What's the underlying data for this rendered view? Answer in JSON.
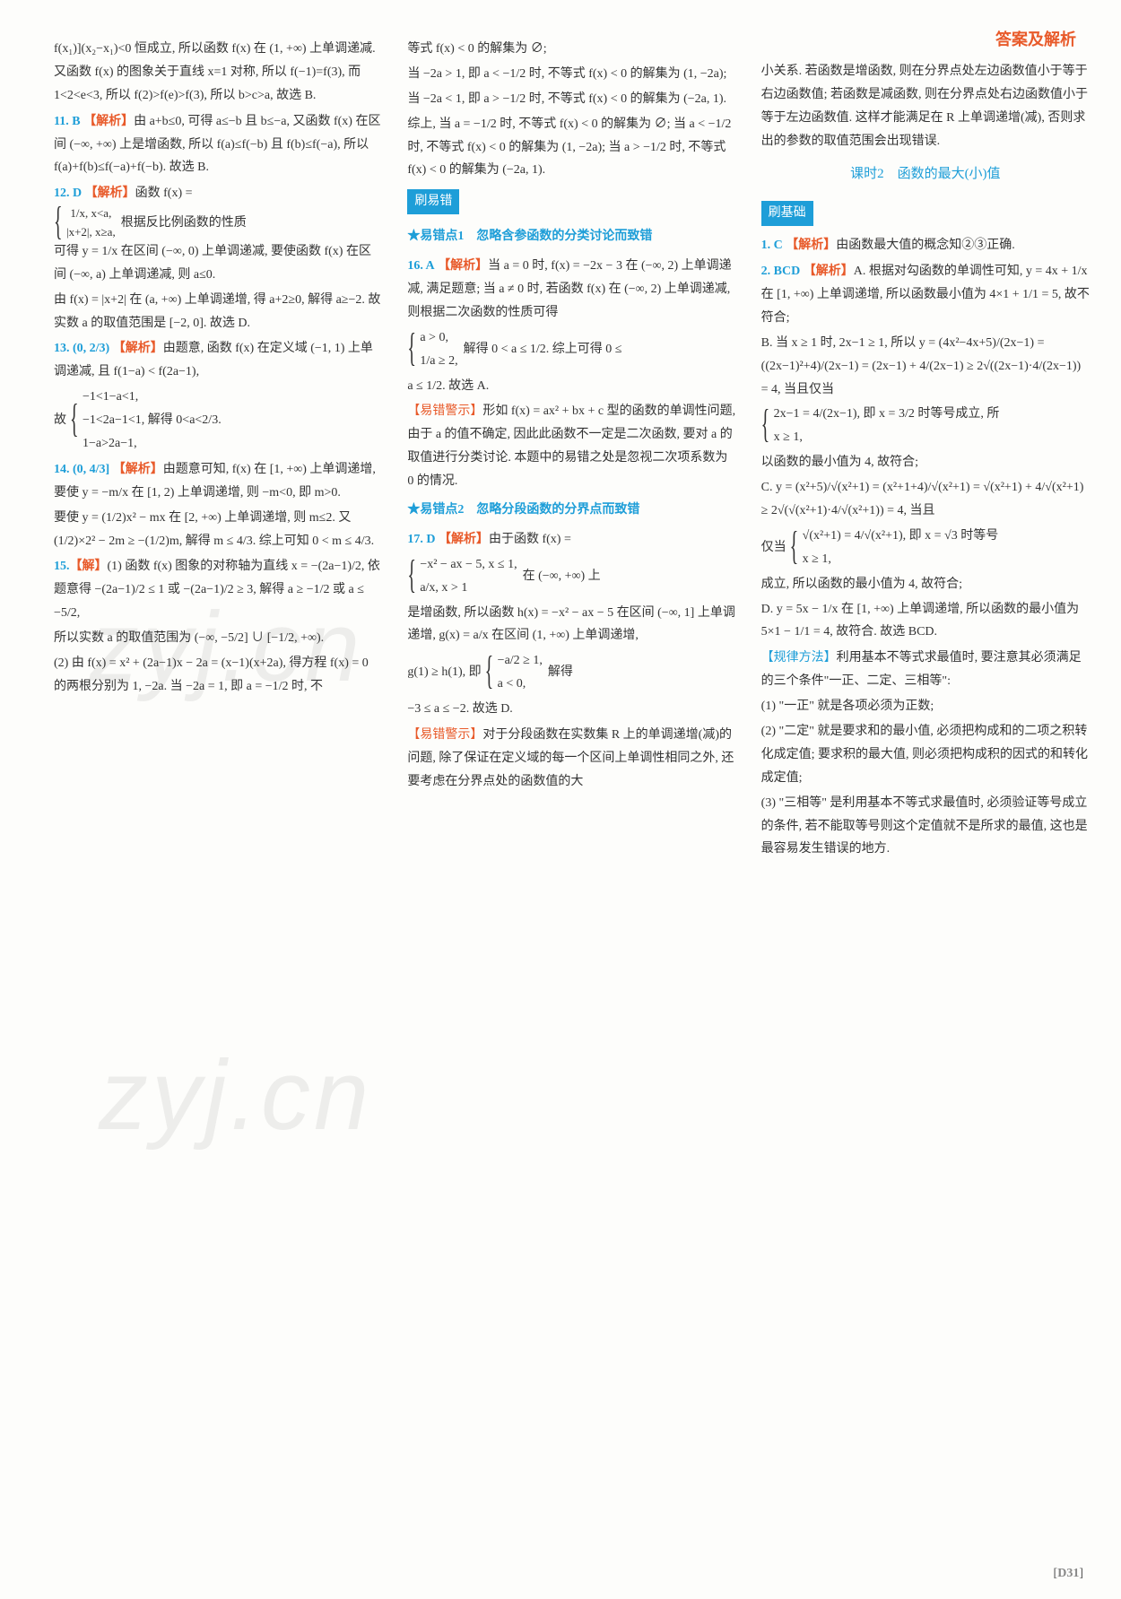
{
  "header": {
    "title": "答案及解析"
  },
  "footer": {
    "label": "[D31]"
  },
  "watermarks": [
    "zyj.cn",
    "zyj.cn"
  ],
  "labels": {
    "jiexi": "【解析】",
    "jie": "【解】",
    "rule": "【规律方法】",
    "warn": "【易错警示】"
  },
  "sections": {
    "shua_yicuo": "刷易错",
    "shua_jichu": "刷基础",
    "star1": "★易错点1　忽略含参函数的分类讨论而致错",
    "star2": "★易错点2　忽略分段函数的分界点而致错",
    "lesson2": "课时2　函数的最大(小)值"
  },
  "col1": {
    "p1": "f(x₁)](x₂−x₁)<0 恒成立, 所以函数 f(x) 在 (1, +∞) 上单调递减. 又函数 f(x) 的图象关于直线 x=1 对称, 所以 f(−1)=f(3), 而 1<2<e<3, 所以 f(2)>f(e)>f(3), 所以 b>c>a, 故选 B.",
    "q11": {
      "num": "11. B",
      "text": "由 a+b≤0, 可得 a≤−b 且 b≤−a, 又函数 f(x) 在区间 (−∞, +∞) 上是增函数, 所以 f(a)≤f(−b) 且 f(b)≤f(−a), 所以 f(a)+f(b)≤f(−a)+f(−b). 故选 B."
    },
    "q12": {
      "num": "12. D",
      "pre": "函数 f(x) =",
      "case1_top": "1/x, x<a,",
      "case1_bot": "|x+2|, x≥a,",
      "mid1": "根据反比例函数的性质",
      "t1": "可得 y = 1/x 在区间 (−∞, 0) 上单调递减, 要使函数 f(x) 在区间 (−∞, a) 上单调递减, 则 a≤0.",
      "t2": "由 f(x) = |x+2| 在 (a, +∞) 上单调递增, 得 a+2≥0, 解得 a≥−2. 故实数 a 的取值范围是 [−2, 0]. 故选 D."
    },
    "q13": {
      "num": "13.",
      "ans": "(0, 2/3)",
      "t1": "由题意, 函数 f(x) 在定义域 (−1, 1) 上单调递减, 且 f(1−a) < f(2a−1),",
      "case1": "−1<1−a<1,",
      "case2": "−1<2a−1<1, 解得 0<a<2/3.",
      "case3": "1−a>2a−1,",
      "pre": "故"
    },
    "q14": {
      "num": "14.",
      "ans": "(0, 4/3]",
      "t1": "由题意可知, f(x) 在 [1, +∞) 上单调递增, 要使 y = −m/x 在 [1, 2) 上单调递增, 则 −m<0, 即 m>0.",
      "t2": "要使 y = (1/2)x² − mx 在 [2, +∞) 上单调递增, 则 m≤2. 又 (1/2)×2² − 2m ≥ −(1/2)m, 解得 m ≤ 4/3. 综上可知 0 < m ≤ 4/3."
    },
    "q15": {
      "num": "15.",
      "t1": "(1) 函数 f(x) 图象的对称轴为直线 x = −(2a−1)/2, 依题意得 −(2a−1)/2 ≤ 1 或 −(2a−1)/2 ≥ 3, 解得 a ≥ −1/2 或 a ≤ −5/2,",
      "t2": "所以实数 a 的取值范围为 (−∞, −5/2] ∪ [−1/2, +∞).",
      "t3": "(2) 由 f(x) = x² + (2a−1)x − 2a = (x−1)(x+2a), 得方程 f(x) = 0 的两根分别为 1, −2a. 当 −2a = 1, 即 a = −1/2 时, 不"
    }
  },
  "col2": {
    "p1": "等式 f(x) < 0 的解集为 ∅;",
    "p2": "当 −2a > 1, 即 a < −1/2 时, 不等式 f(x) < 0 的解集为 (1, −2a);",
    "p3": "当 −2a < 1, 即 a > −1/2 时, 不等式 f(x) < 0 的解集为 (−2a, 1).",
    "p4": "综上, 当 a = −1/2 时, 不等式 f(x) < 0 的解集为 ∅; 当 a < −1/2 时, 不等式 f(x) < 0 的解集为 (1, −2a); 当 a > −1/2 时, 不等式 f(x) < 0 的解集为 (−2a, 1).",
    "q16": {
      "num": "16. A",
      "t1": "当 a = 0 时, f(x) = −2x − 3 在 (−∞, 2) 上单调递减, 满足题意; 当 a ≠ 0 时, 若函数 f(x) 在 (−∞, 2) 上单调递减, 则根据二次函数的性质可得",
      "case1": "a > 0,",
      "case2": "1/a ≥ 2,",
      "mid": "解得 0 < a ≤ 1/2. 综上可得 0 ≤",
      "t2": "a ≤ 1/2. 故选 A."
    },
    "warn1": "形如 f(x) = ax² + bx + c 型的函数的单调性问题, 由于 a 的值不确定, 因此此函数不一定是二次函数, 要对 a 的取值进行分类讨论. 本题中的易错之处是忽视二次项系数为 0 的情况.",
    "q17": {
      "num": "17. D",
      "pre": "由于函数 f(x) =",
      "case1": "−x² − ax − 5, x ≤ 1,",
      "case2": "a/x, x > 1",
      "mid": "在 (−∞, +∞) 上",
      "t1": "是增函数, 所以函数 h(x) = −x² − ax − 5 在区间 (−∞, 1] 上单调递增, g(x) = a/x 在区间 (1, +∞) 上单调递增,",
      "gpre": "g(1) ≥ h(1), 即",
      "gc1": "−a/2 ≥ 1,",
      "gc2": "a < 0,",
      "gmid": "解得",
      "t2": "−3 ≤ a ≤ −2. 故选 D."
    },
    "warn2": "对于分段函数在实数集 R 上的单调递增(减)的问题, 除了保证在定义域的每一个区间上单调性相同之外, 还要考虑在分界点处的函数值的大"
  },
  "col3": {
    "p1": "小关系. 若函数是增函数, 则在分界点处左边函数值小于等于右边函数值; 若函数是减函数, 则在分界点处右边函数值小于等于左边函数值. 这样才能满足在 R 上单调递增(减), 否则求出的参数的取值范围会出现错误.",
    "q1": {
      "num": "1. C",
      "text": "由函数最大值的概念知②③正确."
    },
    "q2": {
      "num": "2. BCD",
      "t1": "A. 根据对勾函数的单调性可知, y = 4x + 1/x 在 [1, +∞) 上单调递增, 所以函数最小值为 4×1 + 1/1 = 5, 故不符合;",
      "t2": "B. 当 x ≥ 1 时, 2x−1 ≥ 1, 所以 y = (4x²−4x+5)/(2x−1) = ((2x−1)²+4)/(2x−1) = (2x−1) + 4/(2x−1) ≥ 2√((2x−1)·4/(2x−1)) = 4, 当且仅当",
      "bcase1": "2x−1 = 4/(2x−1), 即 x = 3/2 时等号成立, 所",
      "bcase2": "x ≥ 1,",
      "t3": "以函数的最小值为 4, 故符合;",
      "t4": "C. y = (x²+5)/√(x²+1) = (x²+1+4)/√(x²+1) = √(x²+1) + 4/√(x²+1) ≥ 2√(√(x²+1)·4/√(x²+1)) = 4, 当且",
      "ccase1": "√(x²+1) = 4/√(x²+1), 即 x = √3 时等号",
      "ccase2": "x ≥ 1,",
      "cpre": "仅当",
      "t5": "成立, 所以函数的最小值为 4, 故符合;",
      "t6": "D. y = 5x − 1/x 在 [1, +∞) 上单调递增, 所以函数的最小值为 5×1 − 1/1 = 4, 故符合. 故选 BCD."
    },
    "rule": {
      "intro": "利用基本不等式求最值时, 要注意其必须满足的三个条件\"一正、二定、三相等\":",
      "r1": "(1) \"一正\" 就是各项必须为正数;",
      "r2": "(2) \"二定\" 就是要求和的最小值, 必须把构成和的二项之积转化成定值; 要求积的最大值, 则必须把构成积的因式的和转化成定值;",
      "r3": "(3) \"三相等\" 是利用基本不等式求最值时, 必须验证等号成立的条件, 若不能取等号则这个定值就不是所求的最值, 这也是最容易发生错误的地方."
    }
  }
}
